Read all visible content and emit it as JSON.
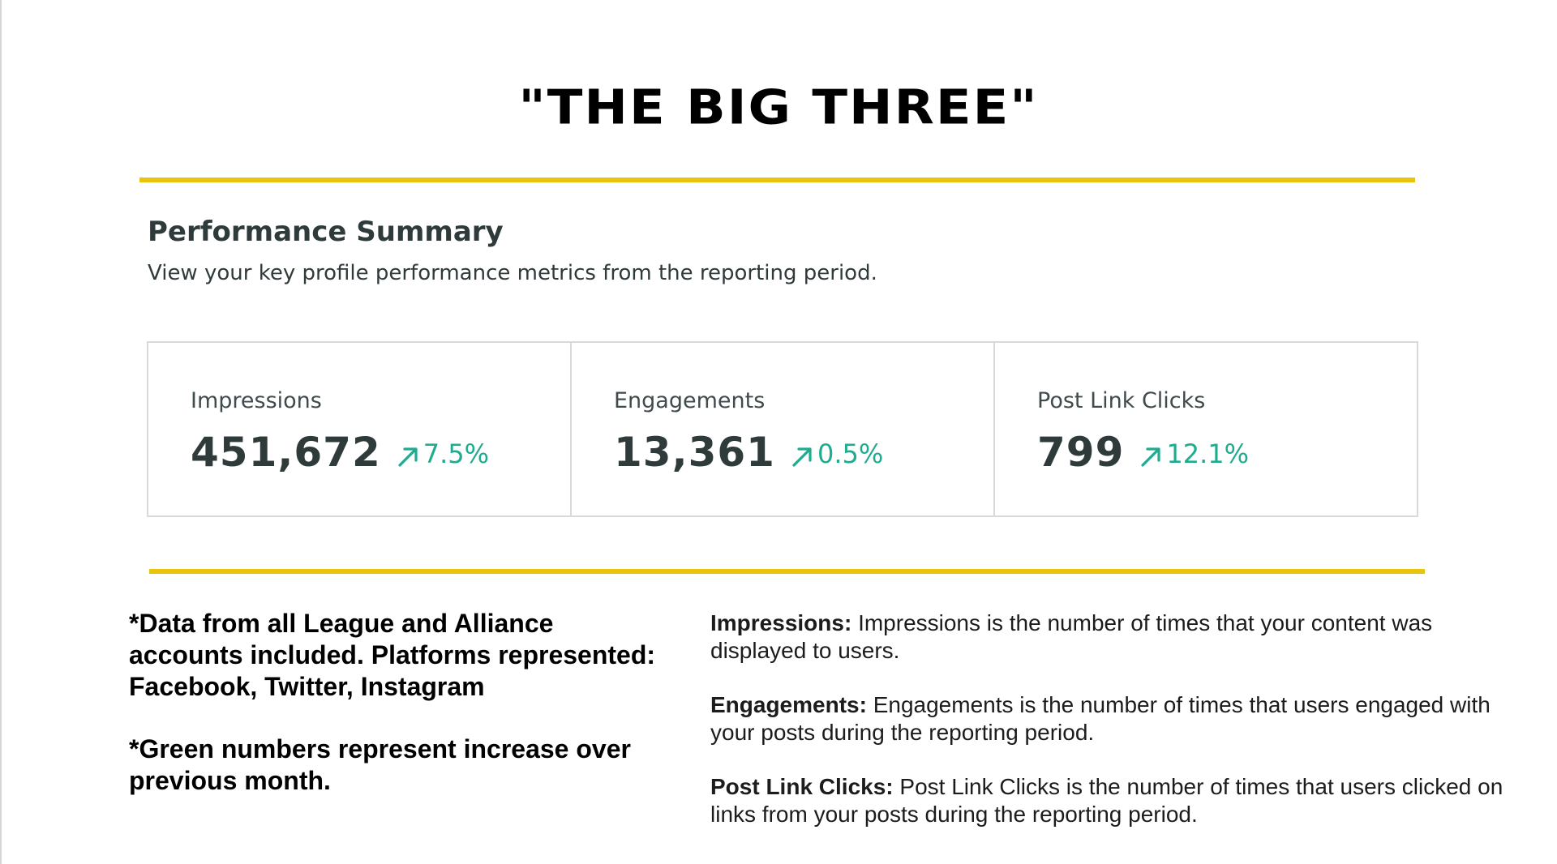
{
  "colors": {
    "accent_rule": "#e8c40e",
    "positive_change": "#1fab8f"
  },
  "title": "\"THE BIG THREE\"",
  "summary": {
    "heading": "Performance Summary",
    "subtitle": "View your key profile performance metrics from the reporting period."
  },
  "metrics": [
    {
      "label": "Impressions",
      "value": "451,672",
      "change": "7.5%",
      "change_icon": "arrow-up-right-icon"
    },
    {
      "label": "Engagements",
      "value": "13,361",
      "change": "0.5%",
      "change_icon": "arrow-up-right-icon"
    },
    {
      "label": "Post Link Clicks",
      "value": "799",
      "change": "12.1%",
      "change_icon": "arrow-up-right-icon"
    }
  ],
  "notes": [
    "*Data from all League and Alliance accounts included. Platforms represented: Facebook, Twitter, Instagram",
    "*Green numbers represent increase over previous month."
  ],
  "definitions": [
    {
      "term": "Impressions:",
      "text": "Impressions is the number of times that your content was displayed to users."
    },
    {
      "term": "Engagements:",
      "text": "Engagements is the number of times that users engaged with your posts during the reporting period."
    },
    {
      "term": "Post Link Clicks:",
      "text": "Post Link Clicks is the number of times that users clicked on links from your posts during the reporting period."
    }
  ]
}
